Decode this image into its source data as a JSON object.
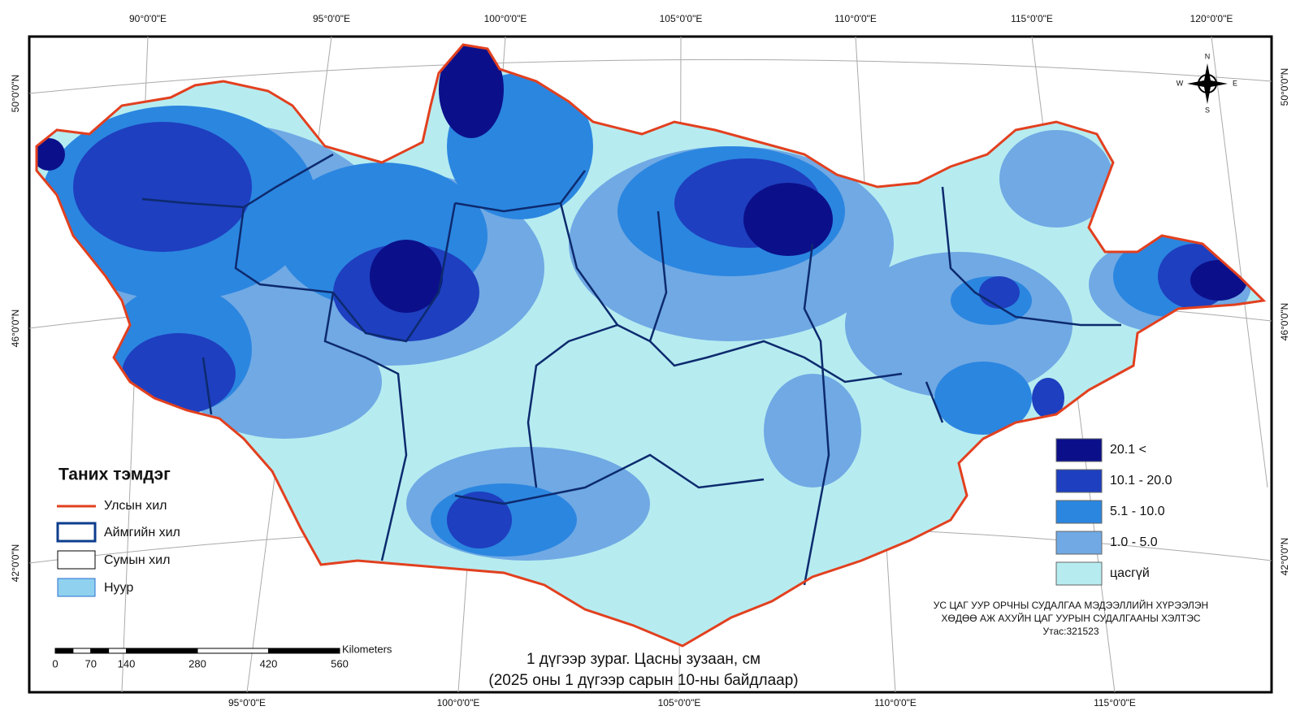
{
  "map": {
    "title": [
      "1 дүгээр зураг. Цасны зузаан, см",
      "(2025 оны 1 дүгээр сарын 10-ны байдлаар)"
    ],
    "graticule": {
      "top": [
        "90°0'0\"E",
        "95°0'0\"E",
        "100°0'0\"E",
        "105°0'0\"E",
        "110°0'0\"E",
        "115°0'0\"E",
        "120°0'0\"E"
      ],
      "bottom": [
        "95°0'0\"E",
        "100°0'0\"E",
        "105°0'0\"E",
        "110°0'0\"E",
        "115°0'0\"E"
      ],
      "left": [
        "50°0'0\"N",
        "46°0'0\"N",
        "42°0'0\"N"
      ],
      "right": [
        "50°0'0\"N",
        "46°0'0\"N",
        "42°0'0\"N"
      ]
    },
    "compass": {
      "n": "N",
      "s": "S",
      "w": "W",
      "e": "E"
    },
    "legend": {
      "title": "Таних тэмдэг",
      "items": [
        "Улсын хил",
        "Аймгийн хил",
        "Сумын хил",
        "Нуур"
      ]
    },
    "classes": [
      {
        "label": "20.1 <",
        "color": "#0b108a"
      },
      {
        "label": "10.1 - 20.0",
        "color": "#1e3fbf"
      },
      {
        "label": "5.1 - 10.0",
        "color": "#2b86e0"
      },
      {
        "label": "1.0 - 5.0",
        "color": "#70a9e4"
      },
      {
        "label": "цасгүй",
        "color": "#b6ecf0"
      }
    ],
    "credits": [
      "УС ЦАГ УУР ОРЧНЫ СУДАЛГАА МЭДЭЭЛЛИЙН ХҮРЭЭЛЭН",
      "ХӨДӨӨ АЖ АХУЙН ЦАГ УУРЫН СУДАЛГААНЫ ХЭЛТЭС",
      "Утас:321523"
    ],
    "scale_bar": {
      "unit": "Kilometers",
      "ticks": [
        0,
        70,
        140,
        280,
        420,
        560
      ]
    }
  }
}
